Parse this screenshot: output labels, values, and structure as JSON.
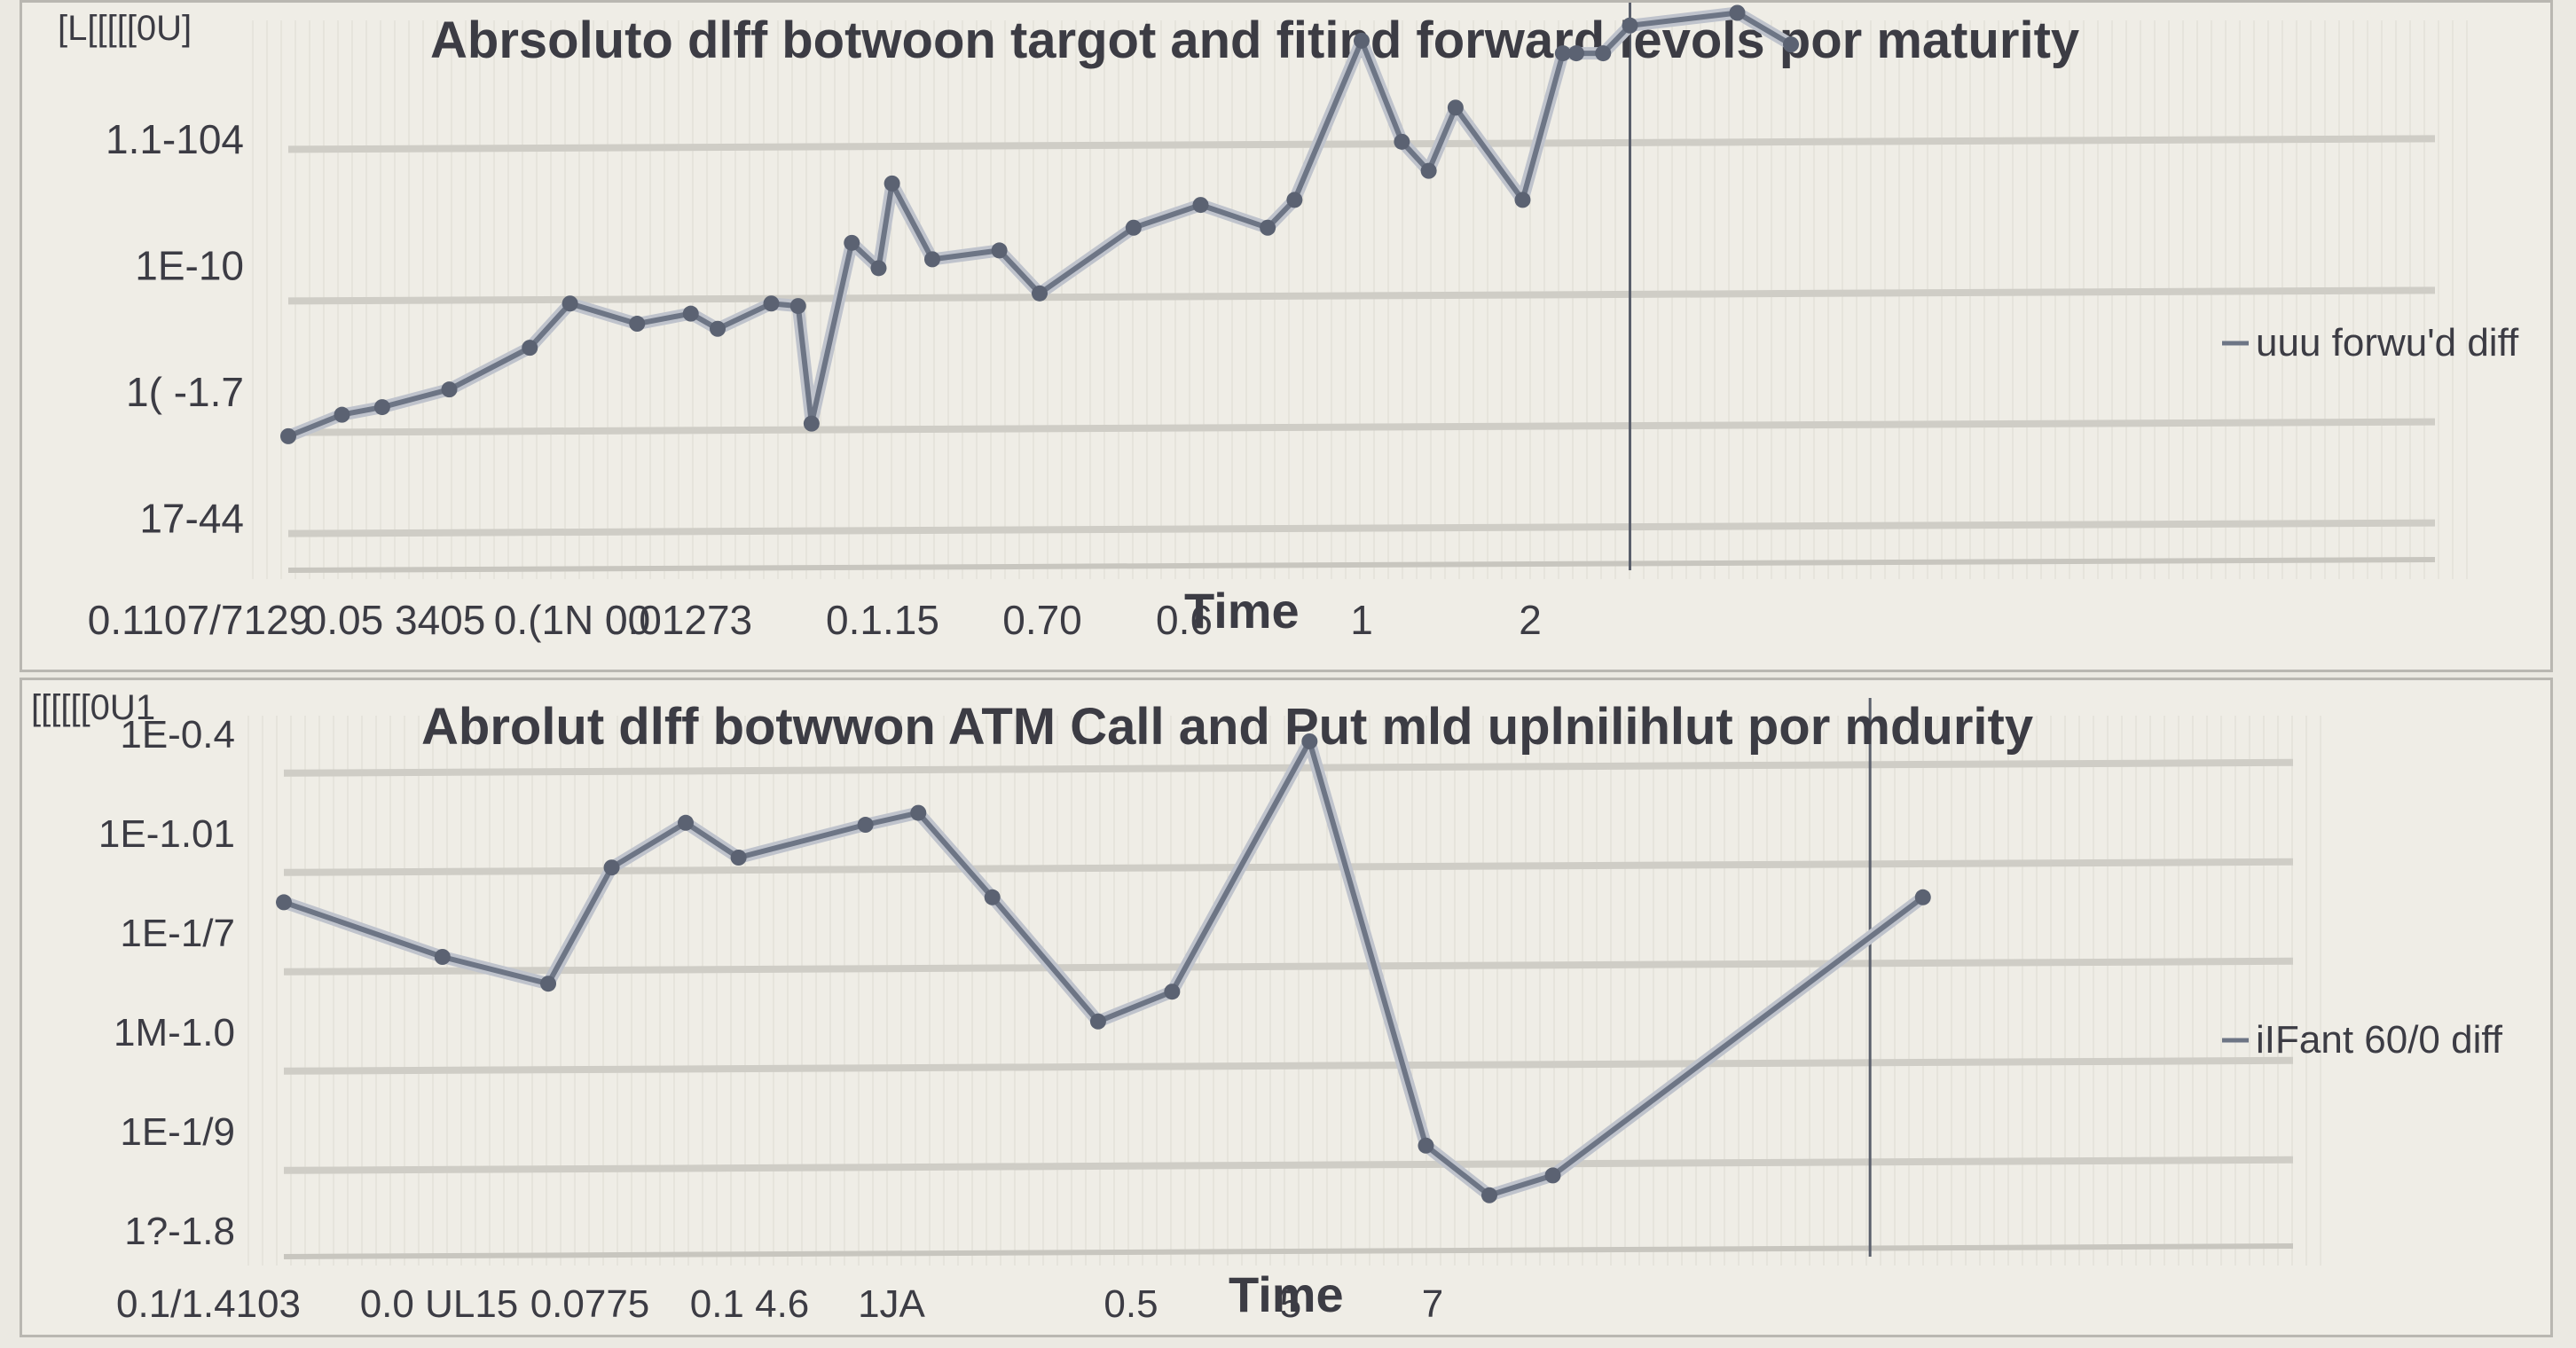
{
  "chart_data": [
    {
      "type": "line",
      "title": "Abrsoluto dlff botwoon targot and fitind forward levols por maturity",
      "xlabel": "Time",
      "ylabel": "",
      "corner_label": "[L[[[[[0U]",
      "y_tick_labels": [
        "17-44",
        "1( -1.7",
        "1E-10",
        "1.1-104",
        ""
      ],
      "x_tick_labels": [
        "0.1107/7129",
        "0.05 3405",
        "0.(1N 00",
        "0.01273",
        "0.1.15",
        "0.70",
        "0.6",
        "1",
        "2"
      ],
      "legend": [
        "uuu forwu'd diff"
      ],
      "color": "#6d7585",
      "vline_x": 1.0,
      "xlim": [
        0,
        1.6
      ],
      "ylim": [
        0,
        4
      ],
      "series": [
        {
          "name": "",
          "x": [
            0.0,
            0.04,
            0.07,
            0.12,
            0.18,
            0.21,
            0.26,
            0.3,
            0.32,
            0.36,
            0.38,
            0.39,
            0.42,
            0.44,
            0.45,
            0.48,
            0.53,
            0.56,
            0.63,
            0.68,
            0.73,
            0.75,
            0.8,
            0.83,
            0.85,
            0.87,
            0.92,
            0.95,
            0.96,
            0.98,
            1.0,
            1.08,
            1.12
          ],
          "y": [
            0.85,
            1.02,
            1.08,
            1.22,
            1.55,
            1.9,
            1.74,
            1.82,
            1.7,
            1.9,
            1.88,
            0.95,
            2.38,
            2.18,
            2.85,
            2.25,
            2.32,
            1.98,
            2.5,
            2.68,
            2.5,
            2.72,
            3.98,
            3.18,
            2.95,
            3.45,
            2.72,
            3.88,
            3.88,
            3.88,
            4.1,
            4.2,
            3.95
          ]
        }
      ]
    },
    {
      "type": "line",
      "title": "Abrolut dlff botwwon ATM Call and Put mld uplnilihlut por mdurity",
      "xlabel": "Time",
      "ylabel": "",
      "corner_label": "[[[[[[0U1",
      "y_tick_labels": [
        "1?-1.8",
        "1E-1/9",
        "1M-1.0",
        "1E-1/7",
        "1E-1.01",
        "1E-0.4"
      ],
      "x_tick_labels": [
        "0.1/1.4103",
        "0.0 UL15",
        "0.0775",
        "0.1 4.6",
        "1JA",
        "0.5",
        "5",
        "7"
      ],
      "legend": [
        "iIFant 60/0 diff"
      ],
      "color": "#6d7585",
      "vline_x": 1.5,
      "xlim": [
        0,
        1.9
      ],
      "ylim": [
        0,
        5
      ],
      "series": [
        {
          "name": "",
          "x": [
            0.0,
            0.15,
            0.25,
            0.31,
            0.38,
            0.43,
            0.55,
            0.6,
            0.67,
            0.77,
            0.84,
            0.97,
            1.08,
            1.14,
            1.2,
            1.55
          ],
          "y": [
            3.3,
            2.75,
            2.48,
            3.65,
            4.1,
            3.75,
            4.08,
            4.2,
            3.35,
            2.1,
            2.4,
            4.92,
            0.85,
            0.35,
            0.55,
            3.35
          ]
        }
      ]
    }
  ]
}
